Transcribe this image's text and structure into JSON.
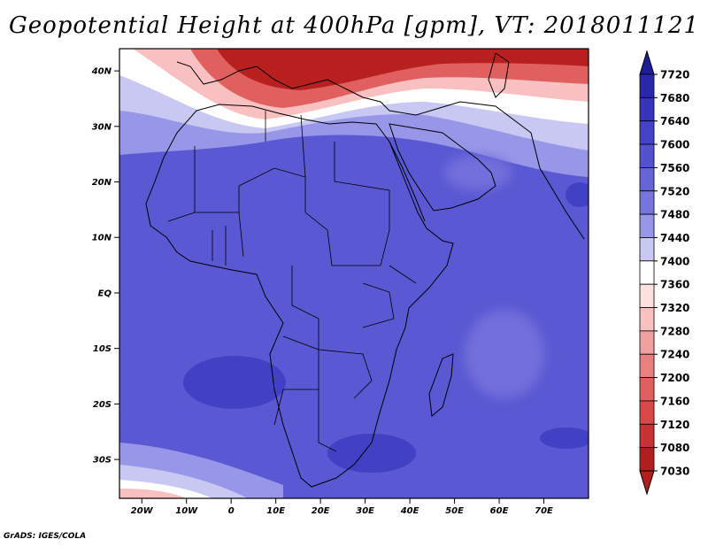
{
  "title": "Geopotential Height at 400hPa [gpm], VT: 2018011121",
  "credit": "GrADS: IGES/COLA",
  "lat_ticks": [
    {
      "label": "40N",
      "lat": 40
    },
    {
      "label": "30N",
      "lat": 30
    },
    {
      "label": "20N",
      "lat": 20
    },
    {
      "label": "10N",
      "lat": 10
    },
    {
      "label": "EQ",
      "lat": 0
    },
    {
      "label": "10S",
      "lat": -10
    },
    {
      "label": "20S",
      "lat": -20
    },
    {
      "label": "30S",
      "lat": -30
    }
  ],
  "lon_ticks": [
    {
      "label": "20W",
      "lon": -20
    },
    {
      "label": "10W",
      "lon": -10
    },
    {
      "label": "0",
      "lon": 0
    },
    {
      "label": "10E",
      "lon": 10
    },
    {
      "label": "20E",
      "lon": 20
    },
    {
      "label": "30E",
      "lon": 30
    },
    {
      "label": "40E",
      "lon": 40
    },
    {
      "label": "50E",
      "lon": 50
    },
    {
      "label": "60E",
      "lon": 60
    },
    {
      "label": "70E",
      "lon": 70
    }
  ],
  "colorbar": {
    "levels": [
      "7720",
      "7680",
      "7640",
      "7600",
      "7560",
      "7520",
      "7480",
      "7440",
      "7400",
      "7360",
      "7320",
      "7280",
      "7240",
      "7200",
      "7160",
      "7120",
      "7080",
      "7030"
    ],
    "colors": [
      "#1e1c96",
      "#2a28aa",
      "#3634bc",
      "#4442c8",
      "#5452d0",
      "#6664d8",
      "#7876de",
      "#9896e8",
      "#c8c8f2",
      "#ffffff",
      "#fde0e0",
      "#f8c0c0",
      "#f0a0a0",
      "#e88080",
      "#e06060",
      "#d84848",
      "#c83232",
      "#b01e1e"
    ]
  },
  "field_colors": {
    "base": "#5a58d2",
    "deep": "#4240c4",
    "mid": "#7270dc",
    "light": "#9896e8",
    "pale": "#c8c8f2",
    "white": "#ffffff",
    "pink": "#f8c0c0",
    "red": "#e06060",
    "darkred": "#b82020"
  }
}
